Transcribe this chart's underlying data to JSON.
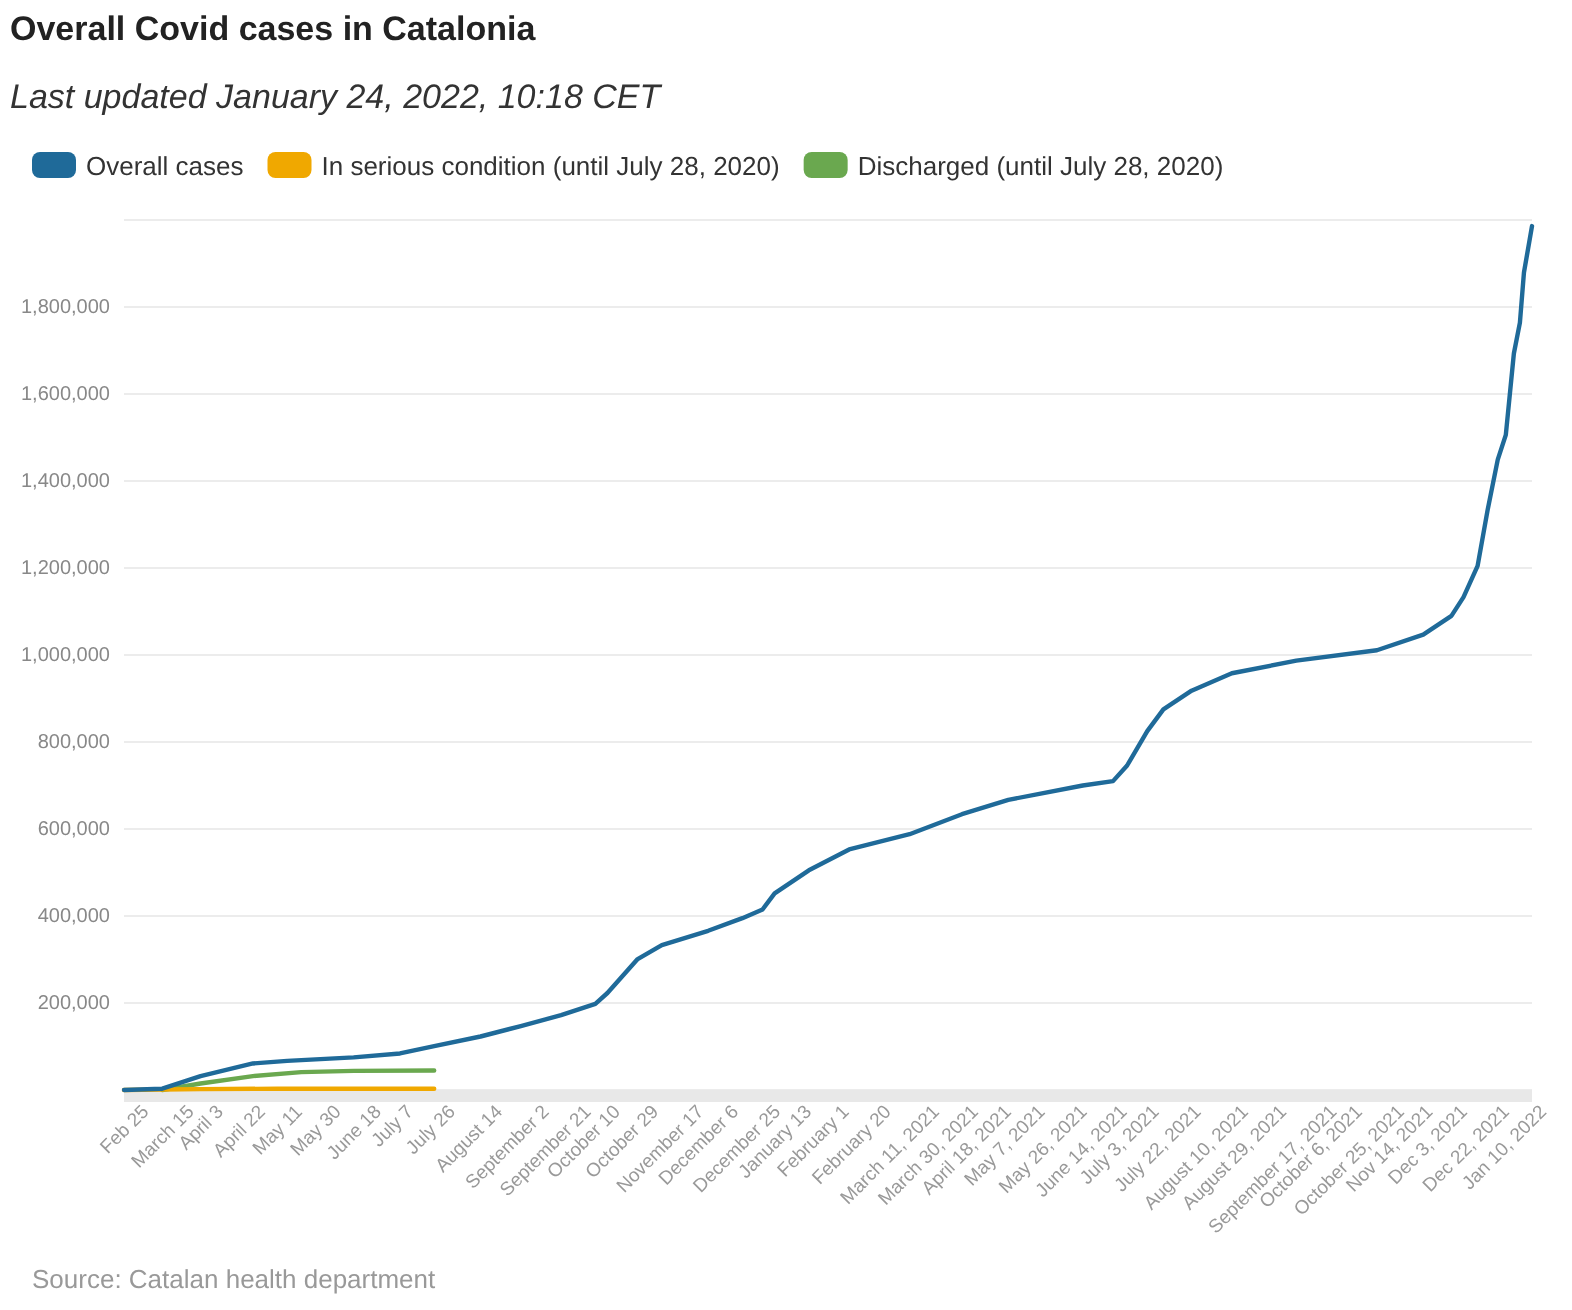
{
  "chart_data": {
    "type": "line",
    "title": "Overall Covid cases in Catalonia",
    "subtitle": "Last updated January 24, 2022, 10:18 CET",
    "annotations": [
      "Source: Catalan health department"
    ],
    "legend": "top left",
    "grid": "y",
    "marker": "none",
    "line_style": "solid",
    "xlim": [
      "2020-02-25",
      "2022-01-24"
    ],
    "xticks": [
      {
        "value": "2020-02-25",
        "label": "Feb 25"
      },
      {
        "value": "2020-03-15",
        "label": "March 15"
      },
      {
        "value": "2020-04-03",
        "label": "April 3"
      },
      {
        "value": "2020-04-22",
        "label": "April 22"
      },
      {
        "value": "2020-05-11",
        "label": "May 11"
      },
      {
        "value": "2020-05-30",
        "label": "May 30"
      },
      {
        "value": "2020-06-18",
        "label": "June 18"
      },
      {
        "value": "2020-07-07",
        "label": "July 7"
      },
      {
        "value": "2020-07-26",
        "label": "July 26"
      },
      {
        "value": "2020-08-14",
        "label": "August 14"
      },
      {
        "value": "2020-09-02",
        "label": "September 2"
      },
      {
        "value": "2020-09-21",
        "label": "September 21"
      },
      {
        "value": "2020-10-10",
        "label": "October 10"
      },
      {
        "value": "2020-10-29",
        "label": "October 29"
      },
      {
        "value": "2020-11-17",
        "label": "November 17"
      },
      {
        "value": "2020-12-06",
        "label": "December 6"
      },
      {
        "value": "2020-12-25",
        "label": "December 25"
      },
      {
        "value": "2021-01-13",
        "label": "January 13"
      },
      {
        "value": "2021-02-01",
        "label": "February 1"
      },
      {
        "value": "2021-02-20",
        "label": "February 20"
      },
      {
        "value": "2021-03-11",
        "label": "March 11, 2021"
      },
      {
        "value": "2021-03-30",
        "label": "March 30, 2021"
      },
      {
        "value": "2021-04-18",
        "label": "April 18, 2021"
      },
      {
        "value": "2021-05-07",
        "label": "May 7, 2021"
      },
      {
        "value": "2021-05-26",
        "label": "May 26, 2021"
      },
      {
        "value": "2021-06-14",
        "label": "June 14, 2021"
      },
      {
        "value": "2021-07-03",
        "label": "July 3, 2021"
      },
      {
        "value": "2021-07-22",
        "label": "July 22, 2021"
      },
      {
        "value": "2021-08-10",
        "label": "August 10, 2021"
      },
      {
        "value": "2021-08-29",
        "label": "August 29, 2021"
      },
      {
        "value": "2021-09-17",
        "label": "September 17, 2021"
      },
      {
        "value": "2021-10-06",
        "label": "October 6, 2021"
      },
      {
        "value": "2021-10-25",
        "label": "October 25, 2021"
      },
      {
        "value": "2021-11-14",
        "label": "Nov 14, 2021"
      },
      {
        "value": "2021-12-03",
        "label": "Dec 3, 2021"
      },
      {
        "value": "2021-12-22",
        "label": "Dec 22, 2021"
      },
      {
        "value": "2022-01-10",
        "label": "Jan 10, 2022"
      }
    ],
    "ylim": [
      0,
      2000000
    ],
    "yticks": [
      {
        "value": 0,
        "label": null
      },
      {
        "value": 200000,
        "label": "200,000"
      },
      {
        "value": 400000,
        "label": "400,000"
      },
      {
        "value": 600000,
        "label": "600,000"
      },
      {
        "value": 800000,
        "label": "800,000"
      },
      {
        "value": 1000000,
        "label": "1,000,000"
      },
      {
        "value": 1200000,
        "label": "1,200,000"
      },
      {
        "value": 1400000,
        "label": "1,400,000"
      },
      {
        "value": 1600000,
        "label": "1,600,000"
      },
      {
        "value": 1800000,
        "label": "1,800,000"
      },
      {
        "value": 2000000,
        "label": null
      }
    ],
    "series": [
      {
        "name": "Overall cases",
        "color": "#1f6a99",
        "x": [
          "2020-02-25",
          "2020-03-15",
          "2020-04-03",
          "2020-04-29",
          "2020-05-16",
          "2020-06-18",
          "2020-07-11",
          "2020-07-28",
          "2020-08-20",
          "2020-09-09",
          "2020-09-29",
          "2020-10-16",
          "2020-10-22",
          "2020-11-06",
          "2020-11-18",
          "2020-12-11",
          "2020-12-28",
          "2021-01-07",
          "2021-01-13",
          "2021-01-30",
          "2021-02-19",
          "2021-03-21",
          "2021-04-16",
          "2021-05-09",
          "2021-06-15",
          "2021-06-30",
          "2021-07-07",
          "2021-07-17",
          "2021-07-25",
          "2021-08-08",
          "2021-08-28",
          "2021-09-29",
          "2021-11-08",
          "2021-12-01",
          "2021-12-15",
          "2021-12-21",
          "2021-12-28",
          "2022-01-02",
          "2022-01-07",
          "2022-01-11",
          "2022-01-15",
          "2022-01-18",
          "2022-01-20",
          "2022-01-24"
        ],
        "values": [
          0,
          3000,
          32000,
          61000,
          67000,
          75000,
          84000,
          101000,
          123000,
          147000,
          172000,
          198000,
          223000,
          301000,
          333000,
          366000,
          395000,
          415000,
          452000,
          505000,
          553000,
          588000,
          634000,
          667000,
          700000,
          710000,
          746000,
          825000,
          875000,
          918000,
          958000,
          987000,
          1011000,
          1047000,
          1090000,
          1133000,
          1205000,
          1334000,
          1449000,
          1506000,
          1693000,
          1764000,
          1879000,
          1986000
        ]
      },
      {
        "name": "In serious condition (until July 28, 2020)",
        "color": "#f0a800",
        "x": [
          "2020-02-25",
          "2020-03-15",
          "2020-04-03",
          "2020-05-11",
          "2020-07-28"
        ],
        "values": [
          0,
          1000,
          2000,
          3000,
          3000
        ]
      },
      {
        "name": "Discharged (until July 28, 2020)",
        "color": "#6aa84f",
        "x": [
          "2020-03-15",
          "2020-04-03",
          "2020-04-29",
          "2020-05-23",
          "2020-06-18",
          "2020-07-28"
        ],
        "values": [
          0,
          15000,
          32000,
          41000,
          44000,
          45000
        ]
      }
    ]
  }
}
